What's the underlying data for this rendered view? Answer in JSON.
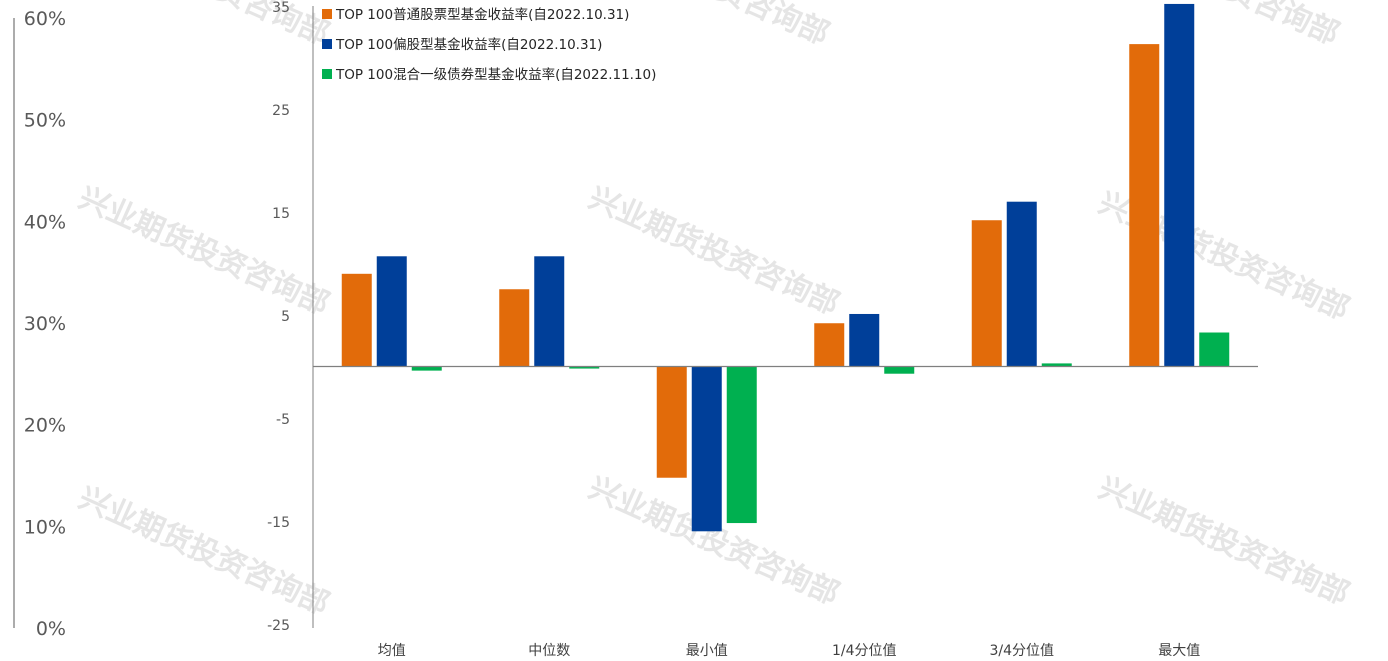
{
  "chart_data": {
    "type": "bar",
    "title": "",
    "xlabel": "",
    "ylabel": "",
    "ylim": [
      -25,
      35
    ],
    "y_ticks": [
      "35",
      "25",
      "15",
      "5",
      "-5",
      "-15",
      "-25"
    ],
    "secondary_axis": {
      "ylim": [
        0,
        60
      ],
      "ticks": [
        "60%",
        "50%",
        "40%",
        "30%",
        "20%",
        "10%",
        "0%"
      ]
    },
    "categories": [
      "均值",
      "中位数",
      "最小值",
      "1/4分位值",
      "3/4分位值",
      "最大值"
    ],
    "series": [
      {
        "name": "TOP 100普通股票型基金收益率(自2022.10.31)",
        "color": "#E26B0A",
        "values": [
          9.0,
          7.5,
          -10.8,
          4.2,
          14.2,
          31.3
        ]
      },
      {
        "name": "TOP 100偏股型基金收益率(自2022.10.31)",
        "color": "#003F99",
        "values": [
          10.7,
          10.7,
          -16.0,
          5.1,
          16.0,
          35.2
        ]
      },
      {
        "name": "TOP 100混合一级债券型基金收益率(自2022.11.10)",
        "color": "#00B050",
        "values": [
          -0.4,
          -0.2,
          -15.2,
          -0.7,
          0.3,
          3.3
        ]
      }
    ],
    "legend": "top-left",
    "grid": false
  },
  "watermark": "兴业期货投资咨询部"
}
